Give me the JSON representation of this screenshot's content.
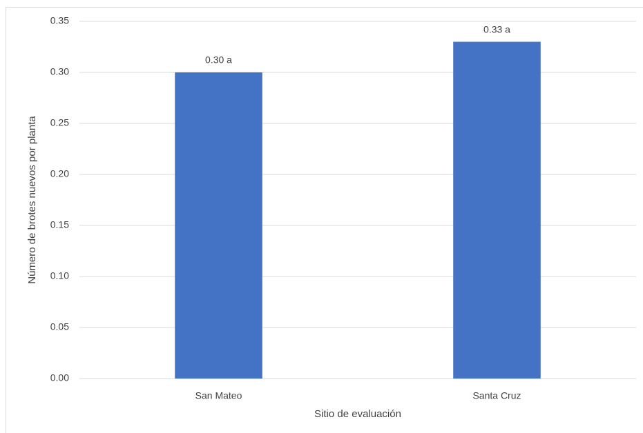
{
  "chart_data": {
    "type": "bar",
    "x_label": "Sitio de evaluación",
    "y_label": "Número de brotes nuevos por planta",
    "categories": [
      "San Mateo",
      "Santa Cruz"
    ],
    "values": [
      0.3,
      0.33
    ],
    "value_labels": [
      "0.30 a",
      "0.33 a"
    ],
    "color": "#4472c4",
    "ylim": [
      0,
      0.35
    ],
    "yticks": [
      {
        "value": 0,
        "label": "0.00"
      },
      {
        "value": 0.05,
        "label": "0.05"
      },
      {
        "value": 0.1,
        "label": "0.10"
      },
      {
        "value": 0.15,
        "label": "0.15"
      },
      {
        "value": 0.2,
        "label": "0.20"
      },
      {
        "value": 0.25,
        "label": "0.25"
      },
      {
        "value": 0.3,
        "label": "0.30"
      },
      {
        "value": 0.35,
        "label": "0.35"
      }
    ],
    "grid": true
  }
}
